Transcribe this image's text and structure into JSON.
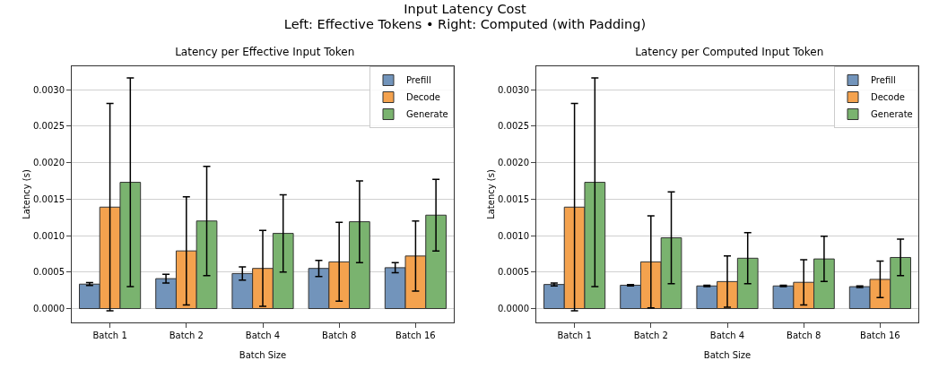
{
  "chart_data": [
    {
      "type": "bar",
      "title": "Latency per Effective Input Token",
      "annotations": [
        "Input Latency Cost",
        "Left: Effective Tokens • Right: Computed (with Padding)"
      ],
      "xlabel": "Batch Size",
      "ylabel": "Latency (s)",
      "categories": [
        "Batch 1",
        "Batch 2",
        "Batch 4",
        "Batch 8",
        "Batch 16"
      ],
      "series": [
        {
          "name": "Prefill",
          "color": "#7294bb",
          "values": [
            0.000335,
            0.00041,
            0.00048,
            0.00055,
            0.00056
          ],
          "errors": [
            2e-05,
            6e-05,
            9e-05,
            0.00011,
            7e-05
          ]
        },
        {
          "name": "Decode",
          "color": "#f4a24e",
          "values": [
            0.00139,
            0.00079,
            0.00055,
            0.00064,
            0.00072
          ],
          "errors": [
            0.00142,
            0.00074,
            0.00052,
            0.00054,
            0.00048
          ]
        },
        {
          "name": "Generate",
          "color": "#7ab36f",
          "values": [
            0.00173,
            0.0012,
            0.00103,
            0.00119,
            0.00128
          ],
          "errors": [
            0.00143,
            0.00075,
            0.00053,
            0.00056,
            0.00049
          ]
        }
      ],
      "ylim": [
        -0.00019,
        0.00332
      ],
      "yticks": [
        {
          "value": 0,
          "label": "0.0000"
        },
        {
          "value": 0.0005,
          "label": "0.0005"
        },
        {
          "value": 0.001,
          "label": "0.0010"
        },
        {
          "value": 0.0015,
          "label": "0.0015"
        },
        {
          "value": 0.002,
          "label": "0.0020"
        },
        {
          "value": 0.0025,
          "label": "0.0025"
        },
        {
          "value": 0.003,
          "label": "0.0030"
        }
      ],
      "grid": "y",
      "legend": "top right"
    },
    {
      "type": "bar",
      "title": "Latency per Computed Input Token",
      "xlabel": "Batch Size",
      "ylabel": "Latency (s)",
      "categories": [
        "Batch 1",
        "Batch 2",
        "Batch 4",
        "Batch 8",
        "Batch 16"
      ],
      "series": [
        {
          "name": "Prefill",
          "color": "#7294bb",
          "values": [
            0.00033,
            0.00032,
            0.00031,
            0.00031,
            0.0003
          ],
          "errors": [
            2e-05,
            1e-05,
            1e-05,
            1e-05,
            1e-05
          ]
        },
        {
          "name": "Decode",
          "color": "#f4a24e",
          "values": [
            0.00139,
            0.00064,
            0.00037,
            0.00036,
            0.0004
          ],
          "errors": [
            0.00142,
            0.00063,
            0.00035,
            0.00031,
            0.00025
          ]
        },
        {
          "name": "Generate",
          "color": "#7ab36f",
          "values": [
            0.00173,
            0.00097,
            0.00069,
            0.00068,
            0.0007
          ],
          "errors": [
            0.00143,
            0.00063,
            0.00035,
            0.00031,
            0.00025
          ]
        }
      ],
      "ylim": [
        -0.00019,
        0.00332
      ],
      "yticks": [
        {
          "value": 0,
          "label": "0.0000"
        },
        {
          "value": 0.0005,
          "label": "0.0005"
        },
        {
          "value": 0.001,
          "label": "0.0010"
        },
        {
          "value": 0.0015,
          "label": "0.0015"
        },
        {
          "value": 0.002,
          "label": "0.0020"
        },
        {
          "value": 0.0025,
          "label": "0.0025"
        },
        {
          "value": 0.003,
          "label": "0.0030"
        }
      ],
      "grid": "y",
      "legend": "top right"
    }
  ]
}
